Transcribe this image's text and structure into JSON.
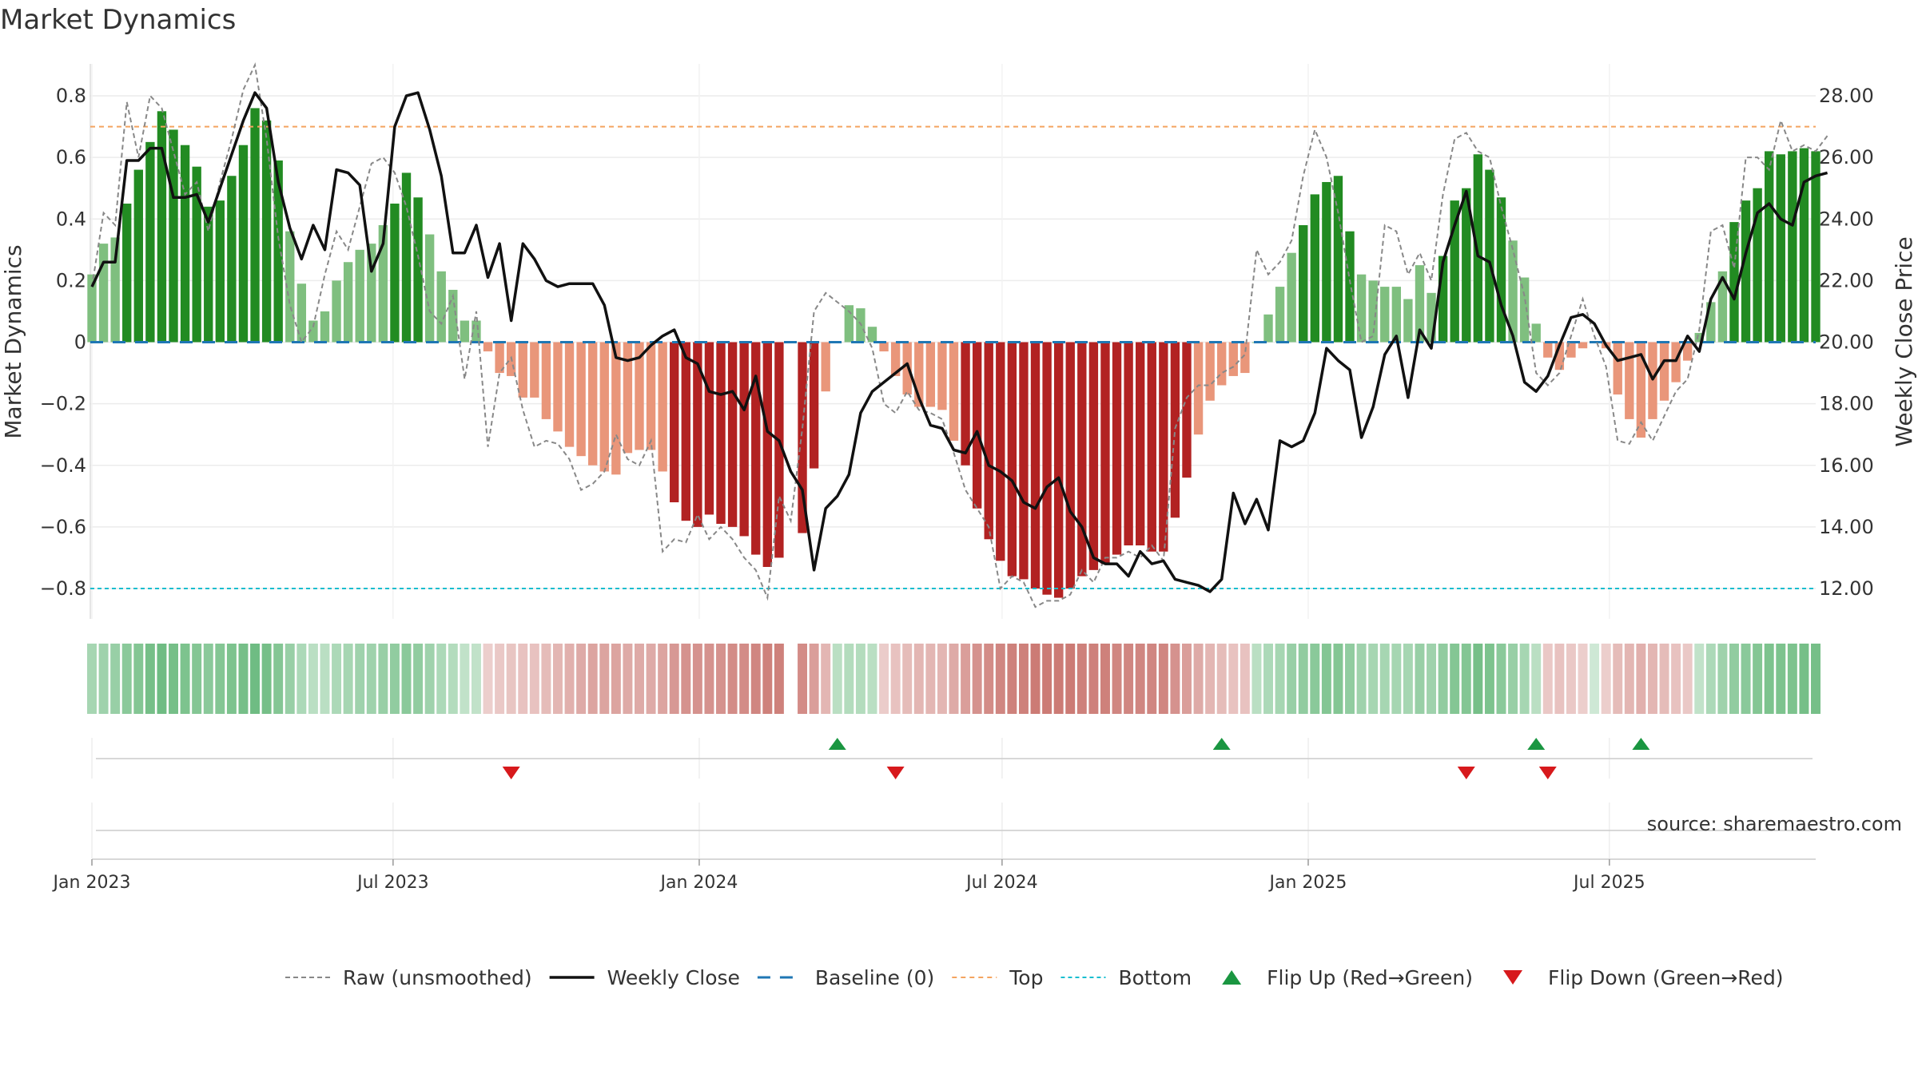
{
  "chart_data": {
    "type": "bar",
    "title": "Market Dynamics",
    "ylabel": "Market Dynamics",
    "y2label": "Weekly Close Price",
    "source": "source: sharemaestro.com",
    "ylim": [
      -0.9,
      0.9
    ],
    "y2lim": [
      10.9,
      28.9
    ],
    "yticks": [
      -0.8,
      -0.6,
      -0.4,
      -0.2,
      0,
      0.2,
      0.4,
      0.6,
      0.8
    ],
    "y2ticks": [
      12,
      14,
      16,
      18,
      20,
      22,
      24,
      26,
      28
    ],
    "top_level": 0.7,
    "bottom_level": -0.8,
    "baseline": 0,
    "start_date": "2023-01-01",
    "xticks": [
      {
        "label": "Jan 2023",
        "date": "2023-01-01"
      },
      {
        "label": "Jul 2023",
        "date": "2023-07-01"
      },
      {
        "label": "Jan 2024",
        "date": "2024-01-01"
      },
      {
        "label": "Jul 2024",
        "date": "2024-07-01"
      },
      {
        "label": "Jan 2025",
        "date": "2025-01-01"
      },
      {
        "label": "Jul 2025",
        "date": "2025-07-01"
      }
    ],
    "legend": [
      {
        "label": "Raw (unsmoothed)",
        "kind": "raw"
      },
      {
        "label": "Weekly Close",
        "kind": "close"
      },
      {
        "label": "Baseline (0)",
        "kind": "baseline"
      },
      {
        "label": "Top",
        "kind": "top"
      },
      {
        "label": "Bottom",
        "kind": "bottom"
      },
      {
        "label": "Flip Up (Red→Green)",
        "kind": "flipup"
      },
      {
        "label": "Flip Down (Green→Red)",
        "kind": "flipdown"
      }
    ],
    "legend_position": "bottom",
    "colors": {
      "green_strong": "#228B22",
      "green_light": "#7FBF7F",
      "red_strong": "#B22222",
      "red_light": "#E9967A",
      "close": "#111111",
      "raw": "#888888",
      "baseline": "#1f77b4",
      "top": "#F4A460",
      "bottom": "#17becf",
      "flip_up": "#1a9641",
      "flip_down": "#d7191c"
    },
    "dynamics": [
      0.22,
      0.32,
      0.34,
      0.45,
      0.56,
      0.65,
      0.75,
      0.69,
      0.64,
      0.57,
      0.44,
      0.46,
      0.54,
      0.64,
      0.76,
      0.72,
      0.59,
      0.36,
      0.19,
      0.07,
      0.1,
      0.2,
      0.26,
      0.3,
      0.32,
      0.38,
      0.45,
      0.55,
      0.47,
      0.35,
      0.23,
      0.17,
      0.07,
      0.07,
      -0.03,
      -0.1,
      -0.11,
      -0.18,
      -0.18,
      -0.25,
      -0.29,
      -0.34,
      -0.37,
      -0.4,
      -0.42,
      -0.43,
      -0.36,
      -0.35,
      -0.35,
      -0.42,
      -0.52,
      -0.58,
      -0.6,
      -0.56,
      -0.59,
      -0.6,
      -0.63,
      -0.69,
      -0.73,
      -0.7,
      null,
      -0.62,
      -0.41,
      -0.16,
      0,
      0.12,
      0.11,
      0.05,
      -0.03,
      -0.11,
      -0.17,
      -0.21,
      -0.21,
      -0.22,
      -0.32,
      -0.4,
      -0.54,
      -0.64,
      -0.71,
      -0.76,
      -0.77,
      -0.8,
      -0.82,
      -0.83,
      -0.8,
      -0.76,
      -0.74,
      -0.72,
      -0.69,
      -0.66,
      -0.66,
      -0.68,
      -0.68,
      -0.57,
      -0.44,
      -0.3,
      -0.19,
      -0.14,
      -0.11,
      -0.1,
      0,
      0.09,
      0.18,
      0.29,
      0.38,
      0.48,
      0.52,
      0.54,
      0.36,
      0.22,
      0.2,
      0.18,
      0.18,
      0.14,
      0.25,
      0.16,
      0.28,
      0.46,
      0.5,
      0.61,
      0.56,
      0.47,
      0.33,
      0.21,
      0.06,
      -0.05,
      -0.09,
      -0.05,
      -0.02,
      0,
      -0.02,
      -0.17,
      -0.25,
      -0.31,
      -0.25,
      -0.19,
      -0.13,
      -0.06,
      0.03,
      0.13,
      0.23,
      0.39,
      0.46,
      0.5,
      0.62,
      0.61,
      0.62,
      0.63,
      0.62
    ],
    "strength": [
      0.35,
      0.4,
      0.45,
      0.55,
      0.6,
      0.7,
      0.75,
      0.7,
      0.65,
      0.6,
      0.55,
      0.6,
      0.65,
      0.7,
      0.75,
      0.7,
      0.6,
      0.45,
      0.3,
      0.2,
      0.2,
      0.3,
      0.35,
      0.4,
      0.4,
      0.45,
      0.5,
      0.55,
      0.5,
      0.4,
      0.3,
      0.25,
      0.15,
      0.15,
      0.1,
      0.15,
      0.18,
      0.2,
      0.2,
      0.25,
      0.3,
      0.35,
      0.4,
      0.45,
      0.45,
      0.45,
      0.4,
      0.4,
      0.4,
      0.45,
      0.55,
      0.6,
      0.6,
      0.6,
      0.6,
      0.65,
      0.65,
      0.7,
      0.75,
      0.75,
      null,
      0.65,
      0.5,
      0.3,
      0.2,
      0.25,
      0.25,
      0.2,
      0.12,
      0.2,
      0.25,
      0.3,
      0.3,
      0.3,
      0.4,
      0.5,
      0.6,
      0.65,
      0.7,
      0.75,
      0.75,
      0.8,
      0.8,
      0.8,
      0.8,
      0.75,
      0.75,
      0.75,
      0.7,
      0.7,
      0.7,
      0.7,
      0.7,
      0.6,
      0.5,
      0.4,
      0.3,
      0.25,
      0.2,
      0.2,
      0.2,
      0.3,
      0.35,
      0.45,
      0.5,
      0.55,
      0.6,
      0.6,
      0.5,
      0.4,
      0.35,
      0.35,
      0.35,
      0.35,
      0.45,
      0.4,
      0.5,
      0.6,
      0.6,
      0.7,
      0.65,
      0.55,
      0.45,
      0.35,
      0.2,
      0.15,
      0.2,
      0.15,
      0.1,
      0.05,
      0.1,
      0.25,
      0.3,
      0.35,
      0.3,
      0.25,
      0.2,
      0.15,
      0.15,
      0.3,
      0.4,
      0.5,
      0.55,
      0.6,
      0.65,
      0.65,
      0.65,
      0.7,
      0.7
    ],
    "raw": [
      0.18,
      0.42,
      0.38,
      0.78,
      0.6,
      0.8,
      0.76,
      0.62,
      0.48,
      0.52,
      0.36,
      0.52,
      0.66,
      0.82,
      0.9,
      0.66,
      0.34,
      0.12,
      0,
      0.05,
      0.22,
      0.36,
      0.3,
      0.44,
      0.58,
      0.6,
      0.55,
      0.44,
      0.28,
      0.1,
      0.06,
      0.15,
      -0.12,
      0.1,
      -0.34,
      -0.1,
      -0.05,
      -0.22,
      -0.34,
      -0.32,
      -0.33,
      -0.38,
      -0.48,
      -0.46,
      -0.42,
      -0.3,
      -0.38,
      -0.4,
      -0.32,
      -0.68,
      -0.64,
      -0.65,
      -0.56,
      -0.64,
      -0.6,
      -0.64,
      -0.7,
      -0.74,
      -0.83,
      -0.5,
      -0.58,
      -0.28,
      0.1,
      0.16,
      0.13,
      0.1,
      0.06,
      -0.02,
      -0.2,
      -0.23,
      -0.16,
      -0.22,
      -0.23,
      -0.25,
      -0.36,
      -0.48,
      -0.54,
      -0.6,
      -0.8,
      -0.76,
      -0.78,
      -0.86,
      -0.84,
      -0.84,
      -0.82,
      -0.74,
      -0.78,
      -0.7,
      -0.7,
      -0.68,
      -0.7,
      -0.66,
      -0.71,
      -0.28,
      -0.18,
      -0.14,
      -0.14,
      -0.1,
      -0.08,
      -0.04,
      0.3,
      0.22,
      0.26,
      0.33,
      0.54,
      0.69,
      0.6,
      0.42,
      0.2,
      0,
      0.02,
      0.38,
      0.36,
      0.22,
      0.29,
      0.2,
      0.48,
      0.66,
      0.68,
      0.62,
      0.6,
      0.44,
      0.3,
      0.15,
      -0.1,
      -0.14,
      -0.1,
      0.02,
      0.14,
      0.02,
      -0.08,
      -0.32,
      -0.33,
      -0.26,
      -0.32,
      -0.24,
      -0.16,
      -0.12,
      0.04,
      0.36,
      0.38,
      0.24,
      0.6,
      0.6,
      0.56,
      0.72,
      0.62,
      0.64,
      0.62,
      0.67
    ],
    "close": [
      21.8,
      22.6,
      22.6,
      25.9,
      25.9,
      26.3,
      26.3,
      24.7,
      24.7,
      24.8,
      23.9,
      25.0,
      26.1,
      27.2,
      28.1,
      27.6,
      25.2,
      23.7,
      22.7,
      23.8,
      23.0,
      25.6,
      25.5,
      25.1,
      22.3,
      23.2,
      27.0,
      28.0,
      28.1,
      26.9,
      25.4,
      22.9,
      22.9,
      23.8,
      22.1,
      23.2,
      20.7,
      23.2,
      22.7,
      22.0,
      21.8,
      21.9,
      21.9,
      21.9,
      21.2,
      19.5,
      19.4,
      19.5,
      19.9,
      20.2,
      20.4,
      19.5,
      19.3,
      18.4,
      18.3,
      18.4,
      17.8,
      18.9,
      17.1,
      16.8,
      15.8,
      15.2,
      12.6,
      14.6,
      15.0,
      15.7,
      17.7,
      18.4,
      18.7,
      19.0,
      19.3,
      18.2,
      17.3,
      17.2,
      16.5,
      16.4,
      17.1,
      16.0,
      15.8,
      15.5,
      14.8,
      14.6,
      15.3,
      15.6,
      14.5,
      14.0,
      13.0,
      12.8,
      12.8,
      12.4,
      13.2,
      12.8,
      12.9,
      12.3,
      12.2,
      12.1,
      11.9,
      12.3,
      15.1,
      14.1,
      14.9,
      13.9,
      16.8,
      16.6,
      16.8,
      17.7,
      19.8,
      19.4,
      19.1,
      16.9,
      17.9,
      19.6,
      20.2,
      18.2,
      20.4,
      19.8,
      22.6,
      23.8,
      24.9,
      22.8,
      22.6,
      21.2,
      20.2,
      18.7,
      18.4,
      18.9,
      19.9,
      20.8,
      20.9,
      20.6,
      19.9,
      19.4,
      19.5,
      19.6,
      18.8,
      19.4,
      19.4,
      20.2,
      19.7,
      21.4,
      22.1,
      21.4,
      22.9,
      24.2,
      24.5,
      24.0,
      23.8,
      25.2,
      25.4,
      25.5
    ]
  },
  "flip_up_dates": [
    "2024-03-24",
    "2024-11-10",
    "2025-05-18",
    "2025-07-20"
  ],
  "flip_down_dates": [
    "2023-09-10",
    "2024-04-28",
    "2025-04-06",
    "2025-05-25"
  ]
}
